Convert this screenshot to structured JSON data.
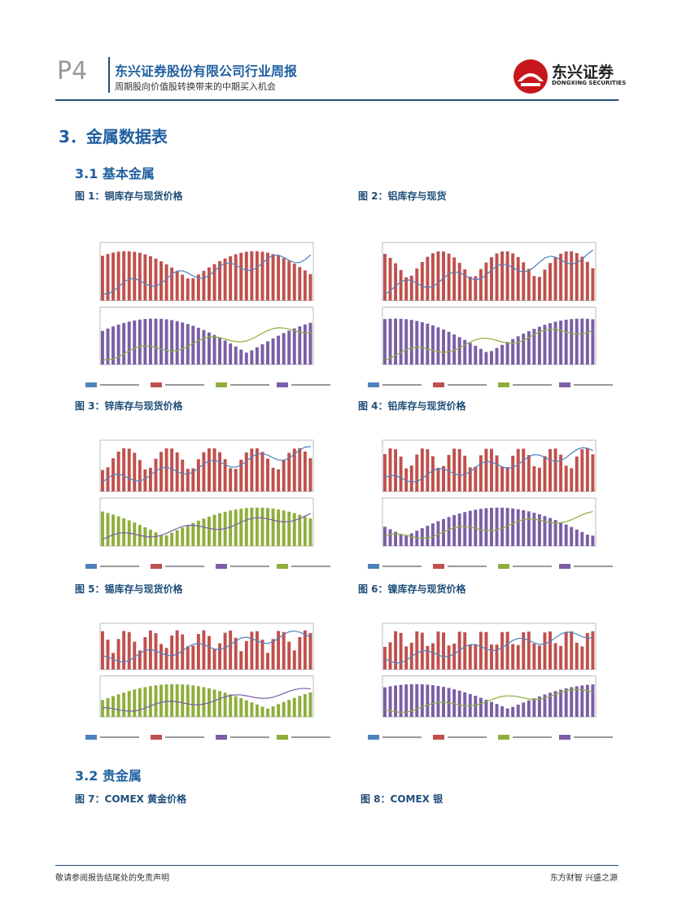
{
  "header": {
    "page": "P4",
    "title": "东兴证券股份有限公司行业周报",
    "subtitle": "周期股向价值股转换带来的中期买入机会",
    "logo_cn": "东兴证券",
    "logo_en": "DONGXING SECURITIES"
  },
  "section": {
    "title": "3．金属数据表"
  },
  "subsections": [
    "3.1  基本金属",
    "3.2  贵金属"
  ],
  "figures": [
    {
      "caption": "图 1：铜库存与现货价格"
    },
    {
      "caption": "图 2：铝库存与现货"
    },
    {
      "caption": "图 3：锌库存与现货价格"
    },
    {
      "caption": "图 4：铅库存与现货价格"
    },
    {
      "caption": "图 5：锡库存与现货价格"
    },
    {
      "caption": "图 6：镍库存与现货价格"
    },
    {
      "caption": "图 7：COMEX 黄金价格"
    },
    {
      "caption": "图 8：COMEX 银"
    }
  ],
  "footer": {
    "disclaimer": "敬请参阅报告结尾处的免责声明",
    "motto": "东方财智 兴盛之源"
  }
}
